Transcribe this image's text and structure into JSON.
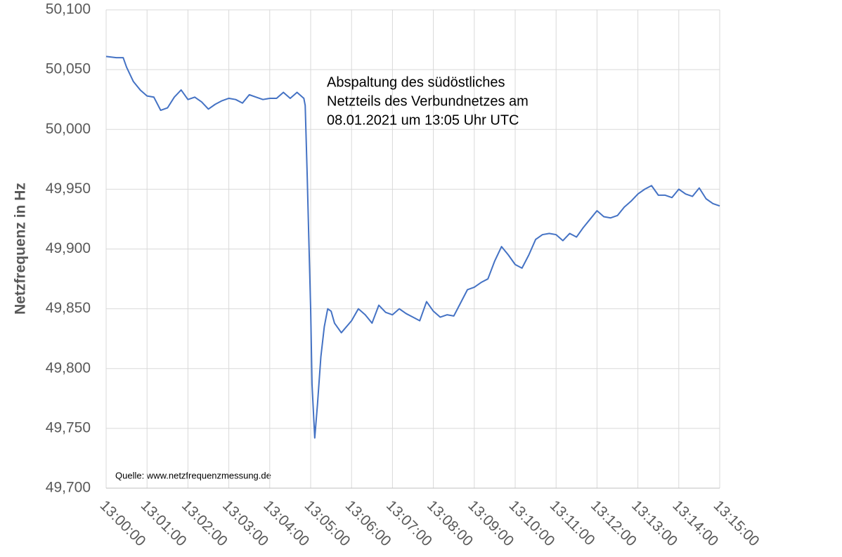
{
  "chart_data": {
    "type": "line",
    "y_label": "Netzfrequenz in Hz",
    "annotation": [
      "Abspaltung des südöstliches",
      "Netzteils des Verbundnetzes am",
      "08.01.2021  um 13:05 Uhr UTC"
    ],
    "source": "Quelle: www.netzfrequenzmessung.de",
    "x": [
      "13:00:00",
      "13:00:15",
      "13:00:25",
      "13:00:30",
      "13:00:40",
      "13:00:50",
      "13:01:00",
      "13:01:10",
      "13:01:20",
      "13:01:30",
      "13:01:40",
      "13:01:50",
      "13:02:00",
      "13:02:10",
      "13:02:20",
      "13:02:30",
      "13:02:40",
      "13:02:50",
      "13:03:00",
      "13:03:10",
      "13:03:20",
      "13:03:30",
      "13:03:40",
      "13:03:50",
      "13:04:00",
      "13:04:10",
      "13:04:20",
      "13:04:30",
      "13:04:40",
      "13:04:50",
      "13:04:52",
      "13:04:55",
      "13:04:57",
      "13:05:00",
      "13:05:02",
      "13:05:06",
      "13:05:10",
      "13:05:15",
      "13:05:20",
      "13:05:25",
      "13:05:30",
      "13:05:35",
      "13:05:45",
      "13:06:00",
      "13:06:10",
      "13:06:20",
      "13:06:30",
      "13:06:40",
      "13:06:50",
      "13:07:00",
      "13:07:10",
      "13:07:20",
      "13:07:30",
      "13:07:40",
      "13:07:50",
      "13:08:00",
      "13:08:10",
      "13:08:20",
      "13:08:30",
      "13:08:40",
      "13:08:50",
      "13:09:00",
      "13:09:10",
      "13:09:20",
      "13:09:30",
      "13:09:40",
      "13:09:50",
      "13:10:00",
      "13:10:10",
      "13:10:20",
      "13:10:30",
      "13:10:40",
      "13:10:50",
      "13:11:00",
      "13:11:10",
      "13:11:20",
      "13:11:30",
      "13:11:40",
      "13:11:50",
      "13:12:00",
      "13:12:10",
      "13:12:20",
      "13:12:30",
      "13:12:40",
      "13:12:50",
      "13:13:00",
      "13:13:10",
      "13:13:20",
      "13:13:30",
      "13:13:40",
      "13:13:50",
      "13:14:00",
      "13:14:10",
      "13:14:20",
      "13:14:30",
      "13:14:40",
      "13:14:50",
      "13:15:00"
    ],
    "series": [
      {
        "name": "Netzfrequenz",
        "color": "#4472c4",
        "values": [
          50.061,
          50.06,
          50.06,
          50.052,
          50.04,
          50.033,
          50.028,
          50.027,
          50.016,
          50.018,
          50.027,
          50.033,
          50.025,
          50.027,
          50.023,
          50.017,
          50.021,
          50.024,
          50.026,
          50.025,
          50.022,
          50.029,
          50.027,
          50.025,
          50.026,
          50.026,
          50.031,
          50.026,
          50.031,
          50.026,
          50.02,
          49.96,
          49.915,
          49.85,
          49.787,
          49.742,
          49.77,
          49.81,
          49.835,
          49.85,
          49.848,
          49.838,
          49.83,
          49.84,
          49.85,
          49.845,
          49.838,
          49.853,
          49.847,
          49.845,
          49.85,
          49.846,
          49.843,
          49.84,
          49.856,
          49.848,
          49.843,
          49.845,
          49.844,
          49.855,
          49.866,
          49.868,
          49.872,
          49.875,
          49.89,
          49.902,
          49.895,
          49.887,
          49.884,
          49.895,
          49.908,
          49.912,
          49.913,
          49.912,
          49.907,
          49.913,
          49.91,
          49.918,
          49.925,
          49.932,
          49.927,
          49.926,
          49.928,
          49.935,
          49.94,
          49.946,
          49.95,
          49.953,
          49.945,
          49.945,
          49.943,
          49.95,
          49.946,
          49.944,
          49.951,
          49.942,
          49.938,
          49.936
        ]
      }
    ],
    "xlim": [
      "13:00:00",
      "13:15:00"
    ],
    "xticks": [
      "13:00:00",
      "13:01:00",
      "13:02:00",
      "13:03:00",
      "13:04:00",
      "13:05:00",
      "13:06:00",
      "13:07:00",
      "13:08:00",
      "13:09:00",
      "13:10:00",
      "13:11:00",
      "13:12:00",
      "13:13:00",
      "13:14:00",
      "13:15:00"
    ],
    "ylim": [
      49.7,
      50.1
    ],
    "yticks": [
      {
        "value": 49.7,
        "label": "49,700"
      },
      {
        "value": 49.75,
        "label": "49,750"
      },
      {
        "value": 49.8,
        "label": "49,800"
      },
      {
        "value": 49.85,
        "label": "49,850"
      },
      {
        "value": 49.9,
        "label": "49,900"
      },
      {
        "value": 49.95,
        "label": "49,950"
      },
      {
        "value": 50.0,
        "label": "50,000"
      },
      {
        "value": 50.05,
        "label": "50,050"
      },
      {
        "value": 50.1,
        "label": "50,100"
      }
    ],
    "grid": true
  }
}
